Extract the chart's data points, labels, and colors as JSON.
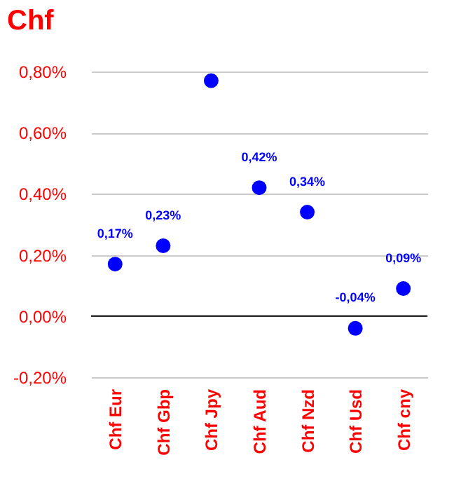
{
  "chart_data": {
    "type": "scatter",
    "title": "Chf",
    "categories": [
      "Chf Eur",
      "Chf Gbp",
      "Chf Jpy",
      "Chf Aud",
      "Chf Nzd",
      "Chf Usd",
      "Chf cny"
    ],
    "series": [
      {
        "color": "#0000ff",
        "values": [
          0.17,
          0.23,
          0.77,
          0.42,
          0.34,
          -0.04,
          0.09
        ],
        "value_labels": [
          "0,17%",
          "0,23%",
          null,
          "0,42%",
          "0,34%",
          "-0,04%",
          "0,09%"
        ]
      }
    ],
    "ylim": [
      -0.2,
      0.8
    ],
    "yticks": [
      {
        "value": -0.2,
        "label": "-0,20%"
      },
      {
        "value": 0,
        "label": "0,00%"
      },
      {
        "value": 0.2,
        "label": "0,20%"
      },
      {
        "value": 0.4,
        "label": "0,40%"
      },
      {
        "value": 0.6,
        "label": "0,60%"
      },
      {
        "value": 0.8,
        "label": "0,80%"
      }
    ],
    "ref_lines": [
      {
        "axis": "y",
        "value": 0,
        "color": "#000000"
      }
    ],
    "grid": "y",
    "marker": "circle"
  }
}
